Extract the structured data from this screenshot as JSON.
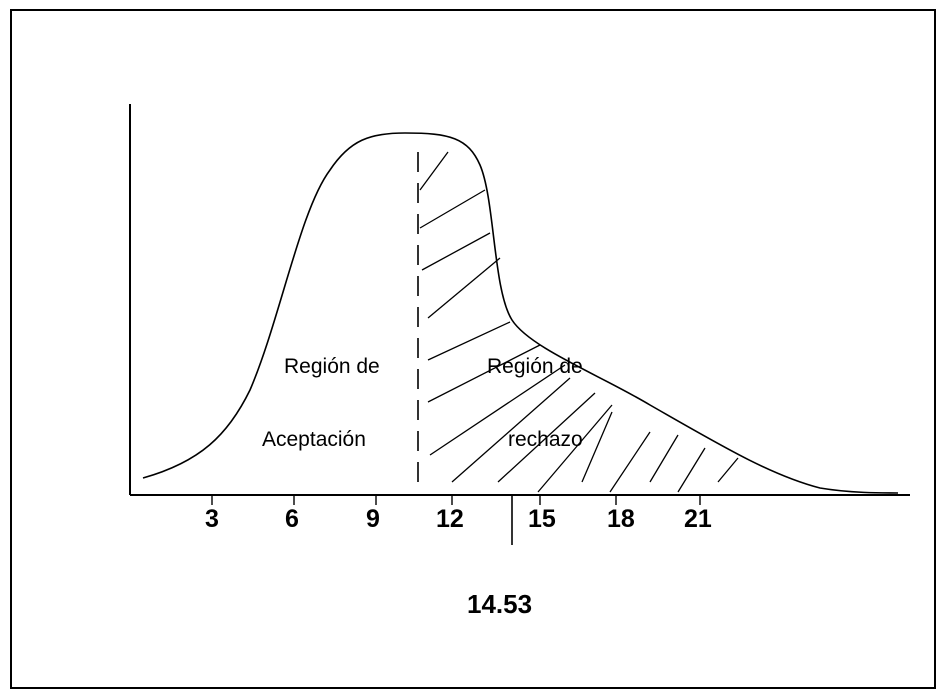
{
  "diagram": {
    "x_ticks": [
      "3",
      "6",
      "9",
      "12",
      "15",
      "18",
      "21"
    ],
    "critical_value": "14.53",
    "acceptance_label": {
      "line1": "Región de",
      "line2": "Aceptación"
    },
    "rejection_label": {
      "line1": "Región de",
      "line2": "rechazo"
    }
  },
  "colors": {
    "stroke": "#000000",
    "background": "#ffffff"
  }
}
